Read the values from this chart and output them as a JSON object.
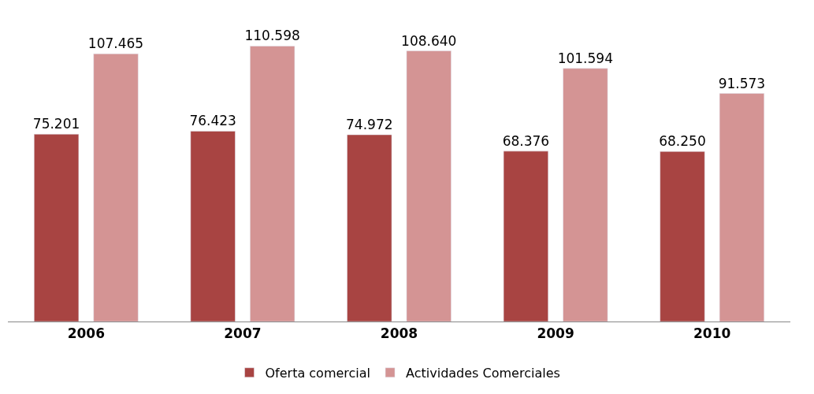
{
  "chart_data": {
    "type": "bar",
    "categories": [
      "2006",
      "2007",
      "2008",
      "2009",
      "2010"
    ],
    "series": [
      {
        "name": "Oferta comercial",
        "color": "#a84442",
        "values": [
          75201,
          76423,
          74972,
          68376,
          68250
        ],
        "value_labels": [
          "75.201",
          "76.423",
          "74.972",
          "68.376",
          "68.250"
        ]
      },
      {
        "name": "Actividades Comerciales",
        "color": "#d49494",
        "values": [
          107465,
          110598,
          108640,
          101594,
          91573
        ],
        "value_labels": [
          "107.465",
          "110.598",
          "108.640",
          "101.594",
          "91.573"
        ]
      }
    ],
    "legend": "bottom"
  }
}
